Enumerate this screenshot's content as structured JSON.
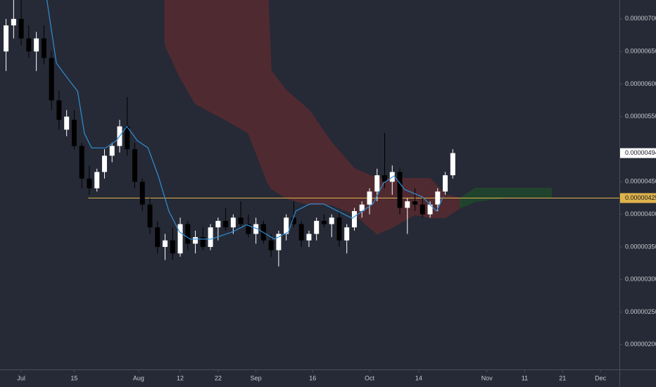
{
  "chart_data": {
    "type": "candlestick",
    "x": [
      -4,
      -2,
      0,
      2,
      4,
      6,
      8,
      10,
      12,
      14,
      16,
      18,
      20,
      22,
      24,
      26,
      28,
      30,
      32,
      34,
      36,
      38,
      40,
      42,
      44,
      46,
      48,
      50,
      52,
      54,
      56,
      58,
      60,
      62,
      64,
      66,
      68,
      70,
      72,
      74,
      76,
      78,
      80,
      82,
      84,
      86,
      88,
      90,
      92,
      94,
      96,
      98,
      100,
      102,
      104,
      106,
      108,
      110,
      112,
      114
    ],
    "open": [
      6.5e-06,
      6.9e-06,
      7e-06,
      6.7e-06,
      6.5e-06,
      6.7e-06,
      6.4e-06,
      5.75e-06,
      5.3e-06,
      5.45e-06,
      5.05e-06,
      4.55e-06,
      4.4e-06,
      4.65e-06,
      4.9e-06,
      5.05e-06,
      5.35e-06,
      5e-06,
      4.5e-06,
      4.15e-06,
      3.8e-06,
      3.5e-06,
      3.6e-06,
      3.4e-06,
      3.85e-06,
      3.55e-06,
      3.65e-06,
      3.5e-06,
      3.8e-06,
      3.9e-06,
      3.8e-06,
      3.95e-06,
      3.85e-06,
      3.7e-06,
      3.85e-06,
      3.6e-06,
      3.45e-06,
      3.7e-06,
      3.95e-06,
      3.85e-06,
      3.6e-06,
      3.7e-06,
      3.9e-06,
      3.85e-06,
      3.95e-06,
      3.6e-06,
      3.8e-06,
      4.05e-06,
      4.15e-06,
      4.35e-06,
      4.6e-06,
      4.5e-06,
      4.65e-06,
      4.1e-06,
      4.2e-06,
      4.15e-06,
      4e-06,
      4.15e-06,
      4.35e-06,
      4.6e-06
    ],
    "high": [
      7e-06,
      7.4e-06,
      7.4e-06,
      6.9e-06,
      6.8e-06,
      6.9e-06,
      6.5e-06,
      5.9e-06,
      5.6e-06,
      5.6e-06,
      5.1e-06,
      4.75e-06,
      4.7e-06,
      5e-06,
      5.1e-06,
      5.45e-06,
      5.8e-06,
      5.1e-06,
      4.55e-06,
      4.25e-06,
      3.9e-06,
      3.7e-06,
      3.8e-06,
      3.95e-06,
      3.9e-06,
      3.75e-06,
      3.8e-06,
      3.85e-06,
      3.95e-06,
      4.1e-06,
      4e-06,
      4.2e-06,
      4e-06,
      3.95e-06,
      3.9e-06,
      3.7e-06,
      3.75e-06,
      4e-06,
      4.2e-06,
      3.9e-06,
      3.75e-06,
      3.95e-06,
      4e-06,
      4e-06,
      4.05e-06,
      3.85e-06,
      4.1e-06,
      4.2e-06,
      4.4e-06,
      4.7e-06,
      5.25e-06,
      4.75e-06,
      4.7e-06,
      4.25e-06,
      4.4e-06,
      4.25e-06,
      4.2e-06,
      4.4e-06,
      4.65e-06,
      5e-06
    ],
    "low": [
      6.2e-06,
      6.7e-06,
      6.6e-06,
      6.4e-06,
      6.2e-06,
      6.3e-06,
      5.6e-06,
      5.3e-06,
      5.2e-06,
      5e-06,
      4.4e-06,
      4.3e-06,
      4.35e-06,
      4.55e-06,
      4.8e-06,
      4.95e-06,
      4.9e-06,
      4.4e-06,
      4.05e-06,
      3.7e-06,
      3.4e-06,
      3.3e-06,
      3.3e-06,
      3.35e-06,
      3.45e-06,
      3.4e-06,
      3.45e-06,
      3.45e-06,
      3.6e-06,
      3.75e-06,
      3.7e-06,
      3.8e-06,
      3.65e-06,
      3.55e-06,
      3.55e-06,
      3.35e-06,
      3.2e-06,
      3.6e-06,
      3.8e-06,
      3.5e-06,
      3.5e-06,
      3.6e-06,
      3.8e-06,
      3.65e-06,
      3.5e-06,
      3.4e-06,
      3.75e-06,
      3.95e-06,
      4e-06,
      4.2e-06,
      4.4e-06,
      4.3e-06,
      4e-06,
      3.7e-06,
      4.05e-06,
      3.95e-06,
      3.95e-06,
      4.05e-06,
      4.3e-06,
      4.55e-06
    ],
    "close": [
      6.9e-06,
      7e-06,
      6.7e-06,
      6.5e-06,
      6.7e-06,
      6.4e-06,
      5.75e-06,
      5.45e-06,
      5.5e-06,
      5.05e-06,
      4.55e-06,
      4.4e-06,
      4.65e-06,
      4.9e-06,
      5.05e-06,
      5.35e-06,
      5e-06,
      4.5e-06,
      4.15e-06,
      3.8e-06,
      3.5e-06,
      3.6e-06,
      3.4e-06,
      3.85e-06,
      3.55e-06,
      3.65e-06,
      3.5e-06,
      3.8e-06,
      3.9e-06,
      3.8e-06,
      3.95e-06,
      3.85e-06,
      3.7e-06,
      3.85e-06,
      3.6e-06,
      3.45e-06,
      3.7e-06,
      3.95e-06,
      3.85e-06,
      3.6e-06,
      3.7e-06,
      3.9e-06,
      3.85e-06,
      3.95e-06,
      3.6e-06,
      3.8e-06,
      4.05e-06,
      4.15e-06,
      4.35e-06,
      4.6e-06,
      4.5e-06,
      4.65e-06,
      4.1e-06,
      4.2e-06,
      4.15e-06,
      4e-06,
      4.15e-06,
      4.35e-06,
      4.6e-06,
      4.94e-06
    ],
    "up_color": "#ffffff",
    "down_color": "#000000",
    "overlays": [
      {
        "type": "area",
        "color": "#5a2a30",
        "x": [
          38,
          42,
          46,
          54,
          60,
          65,
          66,
          70,
          76,
          82,
          88,
          94,
          98,
          104,
          108,
          112,
          116
        ],
        "upper": [
          7.6e-06,
          7.6e-06,
          7.6e-06,
          7.6e-06,
          7.6e-06,
          7.6e-06,
          6.2e-06,
          5.9e-06,
          5.6e-06,
          5.1e-06,
          4.7e-06,
          4.55e-06,
          4.55e-06,
          4.55e-06,
          4.55e-06,
          4.3e-06,
          4.25e-06
        ],
        "lower": [
          6.6e-06,
          6.1e-06,
          5.7e-06,
          5.45e-06,
          5.25e-06,
          4.5e-06,
          4.4e-06,
          4.25e-06,
          4.15e-06,
          4.15e-06,
          4e-06,
          3.7e-06,
          3.8e-06,
          4e-06,
          3.95e-06,
          3.95e-06,
          4.1e-06
        ]
      },
      {
        "type": "area",
        "color": "#1f4a2c",
        "x": [
          116,
          120,
          128,
          136,
          140
        ],
        "upper": [
          4.25e-06,
          4.4e-06,
          4.4e-06,
          4.4e-06,
          4.4e-06
        ],
        "lower": [
          4.1e-06,
          4.2e-06,
          4.25e-06,
          4.25e-06,
          4.25e-06
        ]
      },
      {
        "type": "line",
        "color": "#2f8fd8",
        "x": [
          6.5,
          9.3,
          12.1,
          14.9,
          16.7,
          18.6,
          22.3,
          25.1,
          27.9,
          30.7,
          33.5,
          36.2,
          39.0,
          41.8,
          44.6,
          50.2,
          55.8,
          59.5,
          62.3,
          66.9,
          70.6,
          72.5,
          76.2,
          79.9,
          83.6,
          87.4,
          90.1,
          92.9,
          95.7,
          98.5,
          101.3,
          105.9,
          109.7,
          111.5
        ],
        "values": [
          7.4e-06,
          6.32e-06,
          6.1e-06,
          5.89e-06,
          5.24e-06,
          5.02e-06,
          5.02e-06,
          5.13e-06,
          5.35e-06,
          5.13e-06,
          5.02e-06,
          4.59e-06,
          4.05e-06,
          3.73e-06,
          3.62e-06,
          3.62e-06,
          3.73e-06,
          3.84e-06,
          3.78e-06,
          3.62e-06,
          3.73e-06,
          4.05e-06,
          4.16e-06,
          4.16e-06,
          4.05e-06,
          3.94e-06,
          4.05e-06,
          4.16e-06,
          4.48e-06,
          4.59e-06,
          4.38e-06,
          4.27e-06,
          4.05e-06,
          4.27e-06
        ]
      }
    ],
    "hline": {
      "x": 17.7,
      "value": 4.25e-06,
      "label": "0.00000425",
      "color": "#e0b44c"
    },
    "last_price": {
      "value": 4.94e-06,
      "label": "0.00000494"
    },
    "xlim": [
      -5.6,
      158.0
    ],
    "xticks": [
      {
        "value": 0,
        "label": "Jul"
      },
      {
        "value": 14,
        "label": "15"
      },
      {
        "value": 31,
        "label": "Aug"
      },
      {
        "value": 42,
        "label": "12"
      },
      {
        "value": 52,
        "label": "22"
      },
      {
        "value": 62,
        "label": "Sep"
      },
      {
        "value": 77,
        "label": "16"
      },
      {
        "value": 92,
        "label": "Oct"
      },
      {
        "value": 105,
        "label": "14"
      },
      {
        "value": 123,
        "label": "Nov"
      },
      {
        "value": 133,
        "label": "11"
      },
      {
        "value": 143,
        "label": "21"
      },
      {
        "value": 153,
        "label": "Dec"
      }
    ],
    "ylim": [
      1.62e-06,
      7.29e-06
    ],
    "yticks": [
      {
        "value": 7e-06,
        "label": "0.00000700"
      },
      {
        "value": 6.5e-06,
        "label": "0.00000650"
      },
      {
        "value": 6e-06,
        "label": "0.00000600"
      },
      {
        "value": 5.5e-06,
        "label": "0.00000550"
      },
      {
        "value": 4.5e-06,
        "label": "0.00000450"
      },
      {
        "value": 4e-06,
        "label": "0.00000400"
      },
      {
        "value": 3.5e-06,
        "label": "0.00000350"
      },
      {
        "value": 3e-06,
        "label": "0.00000300"
      },
      {
        "value": 2.5e-06,
        "label": "0.00000250"
      },
      {
        "value": 2e-06,
        "label": "0.00000200"
      }
    ]
  }
}
